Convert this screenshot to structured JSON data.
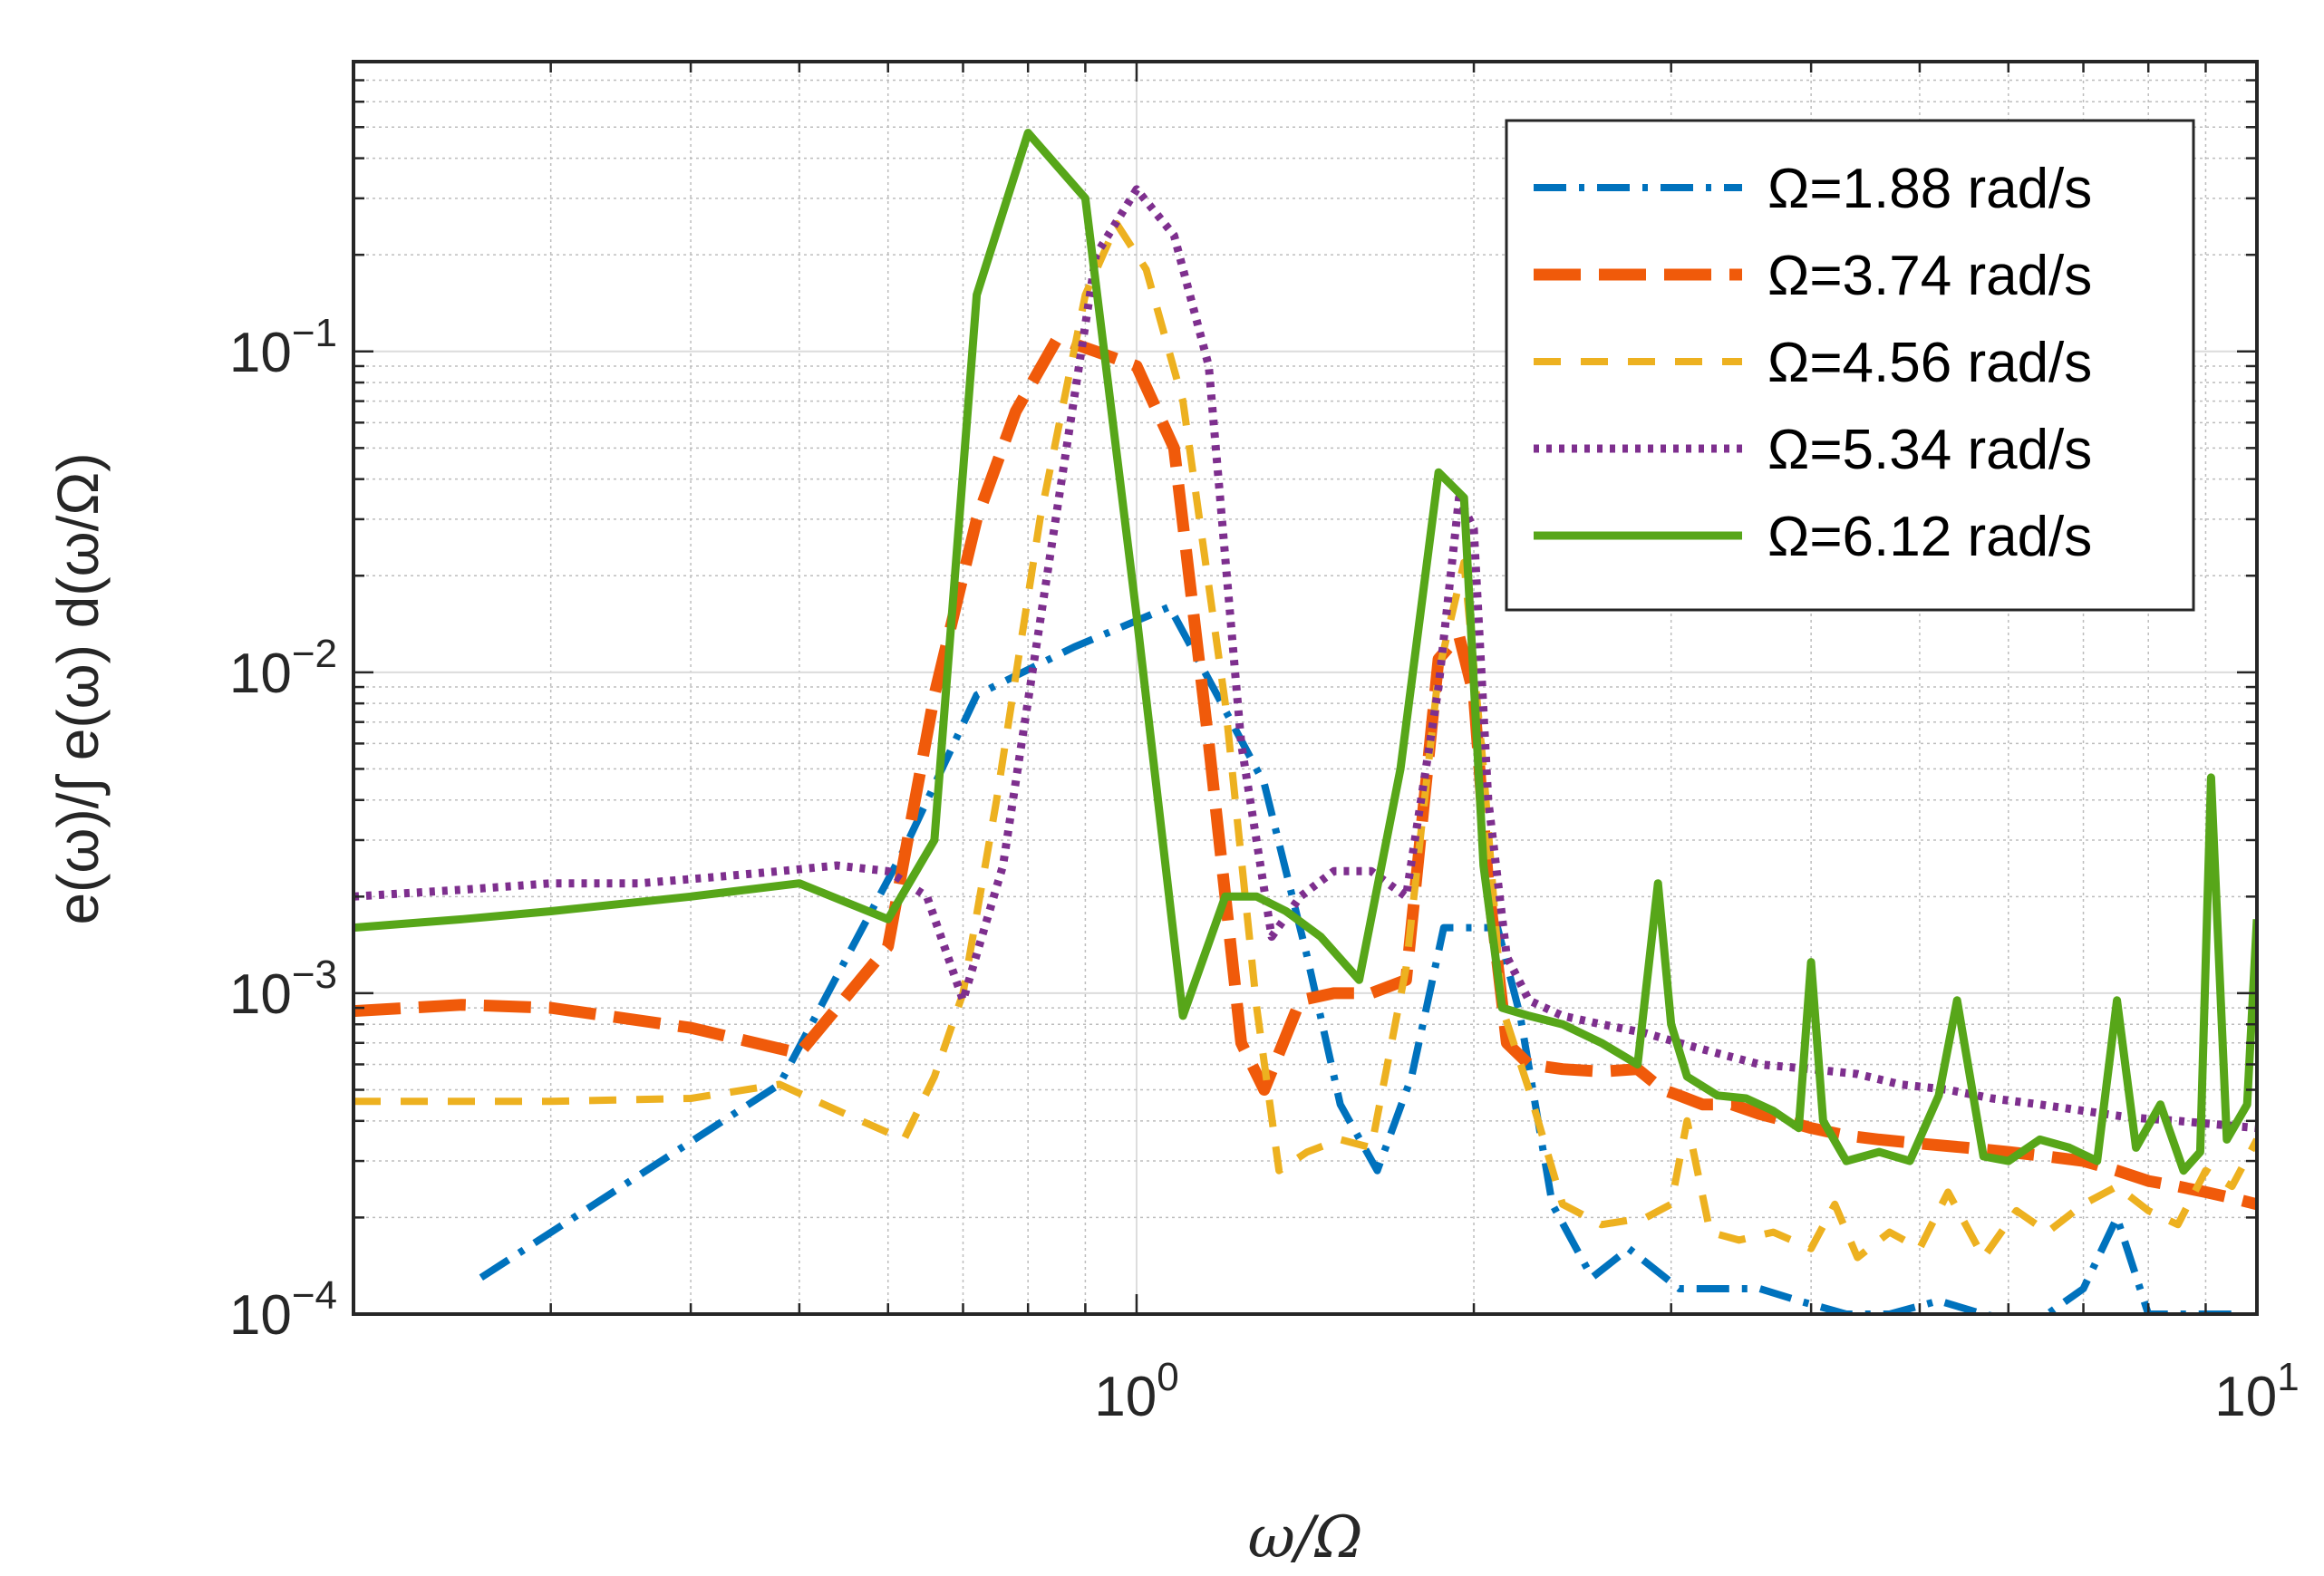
{
  "chart_data": {
    "type": "line",
    "title": "",
    "xlabel": "ω/Ω",
    "ylabel": "e(ω)/∫ e(ω) d(ω/Ω)",
    "xscale": "log",
    "yscale": "log",
    "xlim": [
      0.2,
      10
    ],
    "ylim": [
      0.0001,
      0.8
    ],
    "grid": true,
    "minor_grid": true,
    "legend_position": "top-right",
    "x_ticks": [
      {
        "value": 1,
        "base": "10",
        "exp": "0"
      },
      {
        "value": 10,
        "base": "10",
        "exp": "1"
      }
    ],
    "y_ticks": [
      {
        "value": 0.0001,
        "base": "10",
        "exp": "−4"
      },
      {
        "value": 0.001,
        "base": "10",
        "exp": "−3"
      },
      {
        "value": 0.01,
        "base": "10",
        "exp": "−2"
      },
      {
        "value": 0.1,
        "base": "10",
        "exp": "−1"
      }
    ],
    "series": [
      {
        "name": "Ω=1.88 rad/s",
        "color": "#0072BD",
        "dash": "dashdot",
        "x": [
          0.26,
          0.48,
          0.62,
          0.72,
          0.88,
          1.07,
          1.18,
          1.3,
          1.42,
          1.52,
          1.64,
          1.76,
          1.88,
          2.0,
          2.1,
          2.2,
          2.35,
          2.55,
          2.75,
          3.05,
          3.3,
          3.6,
          3.9,
          4.3,
          4.7,
          5.2,
          5.7,
          6.1,
          6.5,
          7.0,
          7.5,
          8.0,
          8.7,
          9.5
        ],
        "y": [
          0.00013,
          0.00052,
          0.0028,
          0.0085,
          0.012,
          0.016,
          0.0085,
          0.0045,
          0.0013,
          0.00045,
          0.00028,
          0.00055,
          0.0016,
          0.0016,
          0.0016,
          0.00085,
          0.00022,
          0.00013,
          0.00016,
          0.00012,
          0.00012,
          0.00012,
          0.00011,
          0.0001,
          0.0001,
          0.00011,
          0.0001,
          9.5e-05,
          0.0001,
          0.00012,
          0.0002,
          0.0001,
          0.0001,
          0.0001
        ]
      },
      {
        "name": "Ω=3.74 rad/s",
        "color": "#F05A0A",
        "dash": "longdash",
        "x": [
          0.2,
          0.25,
          0.3,
          0.4,
          0.5,
          0.6,
          0.66,
          0.72,
          0.78,
          0.85,
          0.92,
          1.0,
          1.08,
          1.16,
          1.24,
          1.3,
          1.4,
          1.5,
          1.62,
          1.74,
          1.86,
          1.94,
          2.0,
          2.06,
          2.14,
          2.24,
          2.4,
          2.6,
          2.8,
          2.95,
          3.05,
          3.2,
          3.4,
          3.6,
          3.8,
          4.0,
          4.3,
          4.6,
          5.0,
          5.5,
          6.0,
          6.5,
          7.0,
          7.5,
          8.0,
          8.5,
          9.0,
          9.5,
          10.0
        ],
        "y": [
          0.00088,
          0.00092,
          0.0009,
          0.00078,
          0.00065,
          0.0014,
          0.0085,
          0.03,
          0.065,
          0.11,
          0.1,
          0.09,
          0.05,
          0.006,
          0.0007,
          0.0005,
          0.00095,
          0.001,
          0.001,
          0.0011,
          0.011,
          0.013,
          0.0085,
          0.0022,
          0.0007,
          0.0006,
          0.00058,
          0.00057,
          0.00058,
          0.0005,
          0.00048,
          0.00045,
          0.00045,
          0.00042,
          0.0004,
          0.00038,
          0.00036,
          0.00035,
          0.00034,
          0.00033,
          0.00032,
          0.00031,
          0.0003,
          0.00028,
          0.00026,
          0.00025,
          0.00024,
          0.00023,
          0.00022
        ]
      },
      {
        "name": "Ω=4.56 rad/s",
        "color": "#EDB120",
        "dash": "dash",
        "x": [
          0.2,
          0.3,
          0.4,
          0.48,
          0.55,
          0.62,
          0.66,
          0.7,
          0.75,
          0.82,
          0.9,
          0.96,
          1.02,
          1.1,
          1.2,
          1.28,
          1.34,
          1.42,
          1.52,
          1.62,
          1.74,
          1.86,
          1.96,
          2.04,
          2.12,
          2.24,
          2.4,
          2.6,
          2.85,
          3.0,
          3.1,
          3.25,
          3.45,
          3.7,
          4.0,
          4.2,
          4.4,
          4.7,
          5.0,
          5.3,
          5.7,
          6.1,
          6.5,
          7.0,
          7.5,
          8.0,
          8.5,
          9.0,
          9.5,
          10.0
        ],
        "y": [
          0.00046,
          0.00046,
          0.00047,
          0.00052,
          0.00042,
          0.00035,
          0.00055,
          0.001,
          0.004,
          0.03,
          0.15,
          0.25,
          0.18,
          0.07,
          0.008,
          0.0009,
          0.00028,
          0.00032,
          0.00035,
          0.00033,
          0.0012,
          0.01,
          0.022,
          0.005,
          0.0009,
          0.0005,
          0.00022,
          0.00019,
          0.0002,
          0.00022,
          0.0004,
          0.00018,
          0.00017,
          0.00018,
          0.00016,
          0.00022,
          0.00015,
          0.00018,
          0.00016,
          0.00024,
          0.00015,
          0.00021,
          0.00018,
          0.00022,
          0.00025,
          0.00021,
          0.00019,
          0.00028,
          0.00025,
          0.00035
        ]
      },
      {
        "name": "Ω=5.34 rad/s",
        "color": "#7E2F8E",
        "dash": "dot",
        "x": [
          0.2,
          0.25,
          0.3,
          0.36,
          0.42,
          0.48,
          0.54,
          0.6,
          0.65,
          0.7,
          0.76,
          0.84,
          0.92,
          1.0,
          1.08,
          1.16,
          1.24,
          1.32,
          1.4,
          1.5,
          1.62,
          1.74,
          1.86,
          1.94,
          2.0,
          2.06,
          2.14,
          2.24,
          2.4,
          2.6,
          2.85,
          3.05,
          3.3,
          3.6,
          4.0,
          4.4,
          4.8,
          5.3,
          5.8,
          6.4,
          7.0,
          7.7,
          8.5,
          9.2,
          10.0
        ],
        "y": [
          0.002,
          0.0021,
          0.0022,
          0.0022,
          0.0023,
          0.0024,
          0.0025,
          0.0024,
          0.002,
          0.00095,
          0.0025,
          0.025,
          0.2,
          0.32,
          0.23,
          0.09,
          0.006,
          0.0015,
          0.002,
          0.0024,
          0.0024,
          0.002,
          0.009,
          0.035,
          0.028,
          0.004,
          0.0013,
          0.00095,
          0.00085,
          0.0008,
          0.00075,
          0.0007,
          0.00065,
          0.0006,
          0.00058,
          0.00056,
          0.00052,
          0.0005,
          0.00047,
          0.00045,
          0.00043,
          0.00041,
          0.0004,
          0.00039,
          0.00038
        ]
      },
      {
        "name": "Ω=6.12 rad/s",
        "color": "#57A619",
        "dash": "solid",
        "x": [
          0.2,
          0.25,
          0.3,
          0.4,
          0.5,
          0.6,
          0.66,
          0.72,
          0.8,
          0.9,
          1.0,
          1.1,
          1.2,
          1.28,
          1.36,
          1.46,
          1.58,
          1.72,
          1.86,
          1.96,
          2.04,
          2.12,
          2.24,
          2.4,
          2.6,
          2.8,
          2.92,
          3.0,
          3.1,
          3.3,
          3.5,
          3.7,
          3.9,
          4.0,
          4.1,
          4.3,
          4.6,
          4.9,
          5.2,
          5.4,
          5.7,
          6.0,
          6.4,
          6.8,
          7.2,
          7.5,
          7.8,
          8.2,
          8.6,
          8.9,
          9.1,
          9.4,
          9.8,
          10.0
        ],
        "y": [
          0.0016,
          0.0017,
          0.0018,
          0.002,
          0.0022,
          0.0017,
          0.003,
          0.15,
          0.48,
          0.3,
          0.015,
          0.00085,
          0.002,
          0.002,
          0.0018,
          0.0015,
          0.0011,
          0.005,
          0.042,
          0.035,
          0.0025,
          0.0009,
          0.00085,
          0.0008,
          0.0007,
          0.0006,
          0.0022,
          0.0008,
          0.00055,
          0.00048,
          0.00047,
          0.00043,
          0.00038,
          0.00125,
          0.0004,
          0.0003,
          0.00032,
          0.0003,
          0.00048,
          0.00095,
          0.00031,
          0.0003,
          0.00035,
          0.00033,
          0.0003,
          0.00095,
          0.00033,
          0.00045,
          0.00028,
          0.00032,
          0.0047,
          0.00035,
          0.00045,
          0.0017
        ]
      }
    ]
  }
}
